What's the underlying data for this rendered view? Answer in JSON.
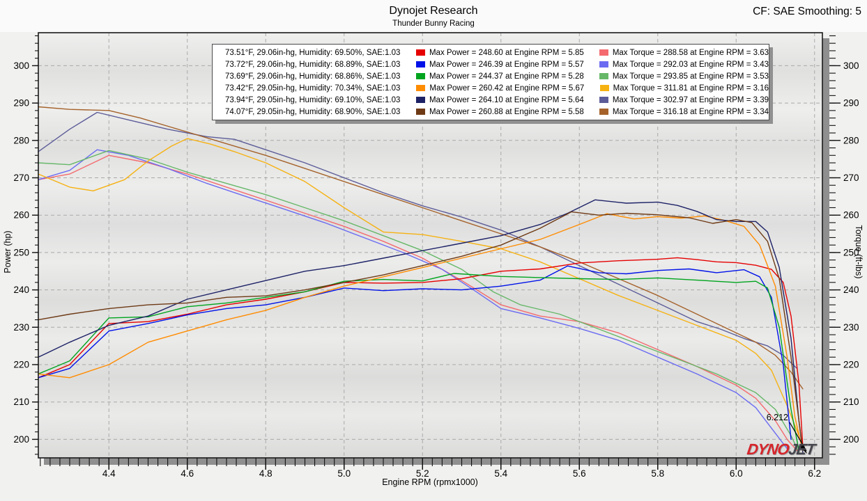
{
  "header": {
    "title": "Dynojet Research",
    "subtitle": "Thunder Bunny Racing",
    "cf_label": "CF: SAE Smoothing: 5"
  },
  "axes": {
    "x": {
      "title": "Engine RPM (rpmx1000)",
      "min": 4.22,
      "max": 6.22,
      "major_ticks": [
        4.4,
        4.6,
        4.8,
        5.0,
        5.2,
        5.4,
        5.6,
        5.8,
        6.0,
        6.2
      ],
      "minor_step": 0.025
    },
    "y_left": {
      "title": "Power (hp)",
      "min": 195,
      "max": 308.8,
      "major_ticks": [
        200,
        210,
        220,
        230,
        240,
        250,
        260,
        270,
        280,
        290,
        300
      ],
      "minor_step": 2
    },
    "y_right": {
      "title": "Torque (ft-lbs)"
    }
  },
  "annotation": {
    "text": "6.212"
  },
  "logo": {
    "text_primary": "DYNO",
    "text_secondary": "JET"
  },
  "legend": {
    "rows": [
      {
        "env": "73.51°F, 29.06in-hg, Humidity: 69.50%, SAE:1.03",
        "power_color": "#e60000",
        "power_label": "Max Power = 248.60 at Engine RPM = 5.85",
        "torque_color": "#f46a6e",
        "torque_label": "Max Torque = 288.58 at Engine RPM = 3.63"
      },
      {
        "env": "73.72°F, 29.06in-hg, Humidity: 68.89%, SAE:1.03",
        "power_color": "#0012e8",
        "power_label": "Max Power = 246.39 at Engine RPM = 5.57",
        "torque_color": "#6b6bf2",
        "torque_label": "Max Torque = 292.03 at Engine RPM = 3.43"
      },
      {
        "env": "73.69°F, 29.06in-hg, Humidity: 68.86%, SAE:1.03",
        "power_color": "#00a41e",
        "power_label": "Max Power = 244.37 at Engine RPM = 5.28",
        "torque_color": "#66b868",
        "torque_label": "Max Torque = 293.85 at Engine RPM = 3.53"
      },
      {
        "env": "73.42°F, 29.05in-hg, Humidity: 70.34%, SAE:1.03",
        "power_color": "#ff8c00",
        "power_label": "Max Power = 260.42 at Engine RPM = 5.67",
        "torque_color": "#f6b211",
        "torque_label": "Max Torque = 311.81 at Engine RPM = 3.16"
      },
      {
        "env": "73.94°F, 29.05in-hg, Humidity: 69.10%, SAE:1.03",
        "power_color": "#1d2266",
        "power_label": "Max Power = 264.10 at Engine RPM = 5.64",
        "torque_color": "#5c5c99",
        "torque_label": "Max Torque = 302.97 at Engine RPM = 3.39"
      },
      {
        "env": "74.07°F, 29.05in-hg, Humidity: 68.90%, SAE:1.03",
        "power_color": "#6e3a15",
        "power_label": "Max Power = 260.88 at Engine RPM = 5.58",
        "torque_color": "#a5622a",
        "torque_label": "Max Torque = 316.18 at Engine RPM = 3.34"
      }
    ]
  },
  "chart_data": {
    "type": "line",
    "xlabel": "Engine RPM (rpmx1000)",
    "ylabel_left": "Power (hp)",
    "ylabel_right": "Torque (ft-lbs)",
    "xlim": [
      4.22,
      6.22
    ],
    "ylim": [
      195,
      308.8
    ],
    "grid": "dashed-major",
    "series": [
      {
        "name": "run1-power",
        "unit": "hp",
        "color": "#e60000",
        "max": {
          "value": 248.6,
          "rpm": 5.85
        },
        "x": [
          4.22,
          4.3,
          4.4,
          4.5,
          4.6,
          4.7,
          4.8,
          4.9,
          5.0,
          5.1,
          5.2,
          5.3,
          5.4,
          5.5,
          5.6,
          5.7,
          5.8,
          5.85,
          5.9,
          5.95,
          6.0,
          6.05,
          6.09,
          6.12,
          6.14,
          6.16,
          6.17
        ],
        "y": [
          216.5,
          220,
          231,
          231.5,
          233.5,
          236,
          237.5,
          239.5,
          242,
          241.8,
          242,
          243,
          245,
          245.6,
          247.2,
          247.8,
          248.2,
          248.6,
          248.1,
          247.5,
          247.3,
          246.6,
          245.5,
          242,
          233,
          215,
          198
        ]
      },
      {
        "name": "run2-power",
        "unit": "hp",
        "color": "#0012e8",
        "max": {
          "value": 246.39,
          "rpm": 5.57
        },
        "x": [
          4.22,
          4.3,
          4.4,
          4.5,
          4.6,
          4.7,
          4.8,
          4.9,
          5.0,
          5.1,
          5.2,
          5.3,
          5.4,
          5.5,
          5.57,
          5.65,
          5.72,
          5.8,
          5.88,
          5.95,
          6.02,
          6.06,
          6.09,
          6.12,
          6.14
        ],
        "y": [
          216.5,
          219,
          229,
          231,
          233.3,
          235,
          236,
          238,
          240.5,
          239.8,
          240.3,
          240,
          241,
          242.6,
          246.4,
          244.6,
          244.3,
          245.2,
          245.6,
          244.6,
          245.4,
          243.5,
          238,
          220,
          200
        ]
      },
      {
        "name": "run3-power",
        "unit": "hp",
        "color": "#00a41e",
        "max": {
          "value": 244.37,
          "rpm": 5.28
        },
        "x": [
          4.22,
          4.3,
          4.4,
          4.5,
          4.6,
          4.7,
          4.8,
          4.9,
          5.0,
          5.1,
          5.2,
          5.28,
          5.4,
          5.5,
          5.6,
          5.7,
          5.8,
          5.9,
          6.0,
          6.05,
          6.08,
          6.11,
          6.14,
          6.16
        ],
        "y": [
          217.5,
          221,
          232.5,
          232.8,
          235.5,
          236.5,
          238,
          239.5,
          242.3,
          242.8,
          242.4,
          244.4,
          243.6,
          243.3,
          243,
          242.8,
          243.2,
          242.6,
          242,
          242.3,
          240.5,
          230,
          208,
          197
        ]
      },
      {
        "name": "run4-power",
        "unit": "hp",
        "color": "#ff8c00",
        "max": {
          "value": 260.42,
          "rpm": 5.67
        },
        "x": [
          4.22,
          4.3,
          4.4,
          4.5,
          4.6,
          4.7,
          4.8,
          4.9,
          5.0,
          5.1,
          5.2,
          5.3,
          5.4,
          5.5,
          5.6,
          5.67,
          5.74,
          5.8,
          5.86,
          5.92,
          5.97,
          6.02,
          6.06,
          6.1,
          6.13,
          6.15,
          6.165
        ],
        "y": [
          217.5,
          216.5,
          220,
          226,
          229,
          232,
          234.5,
          238,
          241,
          243.5,
          246,
          248.5,
          251,
          253.5,
          257.5,
          260.4,
          259,
          259.6,
          259.2,
          259.8,
          258.6,
          257,
          252,
          241,
          222,
          206,
          199
        ]
      },
      {
        "name": "run5-power",
        "unit": "hp",
        "color": "#1d2266",
        "max": {
          "value": 264.1,
          "rpm": 5.64
        },
        "x": [
          4.22,
          4.3,
          4.4,
          4.5,
          4.6,
          4.7,
          4.8,
          4.9,
          5.0,
          5.1,
          5.2,
          5.3,
          5.4,
          5.5,
          5.57,
          5.64,
          5.72,
          5.8,
          5.85,
          5.9,
          5.95,
          6.0,
          6.05,
          6.08,
          6.11,
          6.14,
          6.16,
          6.17
        ],
        "y": [
          222,
          226,
          230.5,
          233,
          237.5,
          240,
          242.5,
          245,
          246.5,
          248.5,
          250.5,
          252.5,
          254.5,
          257.5,
          260.5,
          264.1,
          263.2,
          263.5,
          262.6,
          261,
          258.8,
          258.3,
          258.3,
          255.5,
          246,
          227,
          205,
          196.5
        ]
      },
      {
        "name": "run6-power",
        "unit": "hp",
        "color": "#6e3a15",
        "max": {
          "value": 260.88,
          "rpm": 5.58
        },
        "x": [
          4.22,
          4.3,
          4.4,
          4.5,
          4.6,
          4.7,
          4.8,
          4.9,
          5.0,
          5.1,
          5.2,
          5.3,
          5.4,
          5.5,
          5.58,
          5.65,
          5.72,
          5.8,
          5.88,
          5.94,
          6.0,
          6.04,
          6.08,
          6.11,
          6.14,
          6.16,
          6.17
        ],
        "y": [
          232,
          233.5,
          235,
          236,
          236.5,
          238,
          238.4,
          240,
          242,
          244,
          246.5,
          249,
          252,
          256.5,
          260.9,
          260,
          260.5,
          260.1,
          259.3,
          257.8,
          258.8,
          258,
          253,
          243,
          222,
          205,
          197
        ]
      },
      {
        "name": "run1-torque",
        "unit": "ft-lbs",
        "color": "#f46a6e",
        "max": {
          "value": 288.58,
          "rpm": 3.63
        },
        "x": [
          4.22,
          4.3,
          4.4,
          4.5,
          4.6,
          4.7,
          4.8,
          4.9,
          5.0,
          5.1,
          5.2,
          5.3,
          5.4,
          5.5,
          5.6,
          5.7,
          5.8,
          5.9,
          6.0,
          6.05,
          6.1,
          6.13,
          6.155
        ],
        "y": [
          269.5,
          271,
          276,
          274,
          271,
          267.5,
          264,
          260.5,
          257,
          253,
          248.5,
          242.5,
          236,
          233,
          231.5,
          228.5,
          224,
          219.5,
          214.5,
          211,
          205,
          200,
          197
        ]
      },
      {
        "name": "run2-torque",
        "unit": "ft-lbs",
        "color": "#6b6bf2",
        "max": {
          "value": 292.03,
          "rpm": 3.43
        },
        "x": [
          4.22,
          4.3,
          4.37,
          4.45,
          4.55,
          4.65,
          4.75,
          4.85,
          4.95,
          5.05,
          5.15,
          5.25,
          5.33,
          5.4,
          5.5,
          5.6,
          5.7,
          5.8,
          5.9,
          6.0,
          6.05,
          6.09,
          6.13
        ],
        "y": [
          269.5,
          272,
          277.5,
          276,
          272.5,
          268.5,
          265,
          261.5,
          258,
          254,
          250,
          245.5,
          240,
          235,
          232.5,
          229.7,
          226.5,
          222,
          217.5,
          212.5,
          208.5,
          203,
          197.5
        ]
      },
      {
        "name": "run3-torque",
        "unit": "ft-lbs",
        "color": "#66b868",
        "max": {
          "value": 293.85,
          "rpm": 3.53
        },
        "x": [
          4.22,
          4.3,
          4.4,
          4.5,
          4.6,
          4.7,
          4.8,
          4.9,
          5.0,
          5.1,
          5.2,
          5.3,
          5.38,
          5.45,
          5.55,
          5.65,
          5.75,
          5.85,
          5.95,
          6.05,
          6.1,
          6.14,
          6.16
        ],
        "y": [
          274,
          273.5,
          277.3,
          275,
          271.5,
          268.5,
          265.5,
          262,
          258.5,
          254.5,
          250.5,
          245.5,
          239.5,
          236,
          233.5,
          229.5,
          225.5,
          221.5,
          217.5,
          212.5,
          208,
          201,
          196.5
        ]
      },
      {
        "name": "run4-torque",
        "unit": "ft-lbs",
        "color": "#f6b211",
        "max": {
          "value": 311.81,
          "rpm": 3.16
        },
        "x": [
          4.22,
          4.3,
          4.36,
          4.44,
          4.5,
          4.56,
          4.6,
          4.66,
          4.72,
          4.8,
          4.9,
          5.0,
          5.1,
          5.2,
          5.3,
          5.4,
          5.5,
          5.6,
          5.7,
          5.8,
          5.9,
          6.0,
          6.05,
          6.09,
          6.13,
          6.16
        ],
        "y": [
          271,
          267.5,
          266.5,
          269.5,
          274.5,
          278.5,
          280.5,
          279,
          277,
          274,
          269,
          262,
          255.5,
          254.8,
          253,
          251,
          247.5,
          243,
          238.5,
          234.5,
          230.5,
          226.5,
          223,
          218.5,
          209,
          201
        ]
      },
      {
        "name": "run5-torque",
        "unit": "ft-lbs",
        "color": "#5c5c99",
        "max": {
          "value": 302.97,
          "rpm": 3.39
        },
        "x": [
          4.22,
          4.3,
          4.37,
          4.45,
          4.55,
          4.65,
          4.72,
          4.8,
          4.9,
          5.0,
          5.1,
          5.2,
          5.3,
          5.4,
          5.5,
          5.6,
          5.7,
          5.8,
          5.9,
          5.96,
          6.02,
          6.08,
          6.12,
          6.155
        ],
        "y": [
          277,
          283,
          287.5,
          285.5,
          283,
          281,
          280.3,
          277.5,
          274,
          270,
          266,
          262.5,
          259.5,
          256,
          251.5,
          246.5,
          241.5,
          236.5,
          231.5,
          229.5,
          227,
          225,
          222.5,
          219
        ]
      },
      {
        "name": "run6-torque",
        "unit": "ft-lbs",
        "color": "#a5622a",
        "max": {
          "value": 316.18,
          "rpm": 3.34
        },
        "x": [
          4.22,
          4.3,
          4.4,
          4.48,
          4.56,
          4.64,
          4.72,
          4.8,
          4.9,
          5.0,
          5.1,
          5.2,
          5.3,
          5.4,
          5.5,
          5.6,
          5.7,
          5.8,
          5.9,
          6.0,
          6.05,
          6.1,
          6.14,
          6.17
        ],
        "y": [
          289,
          288.3,
          288,
          286,
          283.5,
          281,
          278.5,
          276,
          272.5,
          269,
          265.5,
          262,
          258.5,
          255,
          251.5,
          247.5,
          243,
          238.5,
          233.5,
          228.5,
          226,
          222.5,
          218,
          213.5
        ]
      }
    ]
  }
}
